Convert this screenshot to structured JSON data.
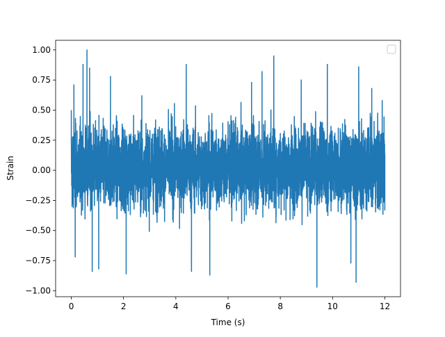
{
  "chart_data": {
    "type": "line",
    "title": "",
    "xlabel": "Time (s)",
    "ylabel": "Strain",
    "xlim": [
      -0.6,
      12.6
    ],
    "ylim": [
      -1.05,
      1.08
    ],
    "xticks": [
      0,
      2,
      4,
      6,
      8,
      10,
      12
    ],
    "xtick_labels": [
      "0",
      "2",
      "4",
      "6",
      "8",
      "10",
      "12"
    ],
    "yticks": [
      -1.0,
      -0.75,
      -0.5,
      -0.25,
      0.0,
      0.25,
      0.5,
      0.75,
      1.0
    ],
    "ytick_labels": [
      "−1.00",
      "−0.75",
      "−0.50",
      "−0.25",
      "0.00",
      "0.25",
      "0.50",
      "0.75",
      "1.00"
    ],
    "grid": false,
    "legend": {
      "location": "upper-right",
      "entries": []
    },
    "series": [
      {
        "color": "#1f77b4",
        "x_range": [
          0,
          12
        ],
        "envelope_note": "dense noise signal",
        "dense_envelope": {
          "typical_low": -0.45,
          "typical_high": 0.5
        },
        "peaks": [
          {
            "x": 0.0,
            "y": 0.5
          },
          {
            "x": 0.05,
            "y": -0.28
          },
          {
            "x": 0.1,
            "y": 0.71
          },
          {
            "x": 0.15,
            "y": -0.72
          },
          {
            "x": 0.45,
            "y": 0.88
          },
          {
            "x": 0.6,
            "y": 1.0
          },
          {
            "x": 0.7,
            "y": 0.85
          },
          {
            "x": 0.8,
            "y": -0.84
          },
          {
            "x": 1.05,
            "y": -0.82
          },
          {
            "x": 1.5,
            "y": 0.78
          },
          {
            "x": 2.1,
            "y": -0.86
          },
          {
            "x": 2.7,
            "y": 0.62
          },
          {
            "x": 4.4,
            "y": 0.88
          },
          {
            "x": 4.6,
            "y": -0.84
          },
          {
            "x": 5.3,
            "y": -0.87
          },
          {
            "x": 6.9,
            "y": 0.73
          },
          {
            "x": 7.3,
            "y": 0.82
          },
          {
            "x": 7.75,
            "y": 0.95
          },
          {
            "x": 8.8,
            "y": 0.75
          },
          {
            "x": 9.4,
            "y": -0.97
          },
          {
            "x": 9.8,
            "y": 0.88
          },
          {
            "x": 10.7,
            "y": -0.77
          },
          {
            "x": 10.9,
            "y": -0.93
          },
          {
            "x": 11.0,
            "y": 0.86
          },
          {
            "x": 11.5,
            "y": 0.68
          },
          {
            "x": 11.9,
            "y": 0.58
          },
          {
            "x": 12.0,
            "y": -0.33
          }
        ]
      }
    ]
  }
}
